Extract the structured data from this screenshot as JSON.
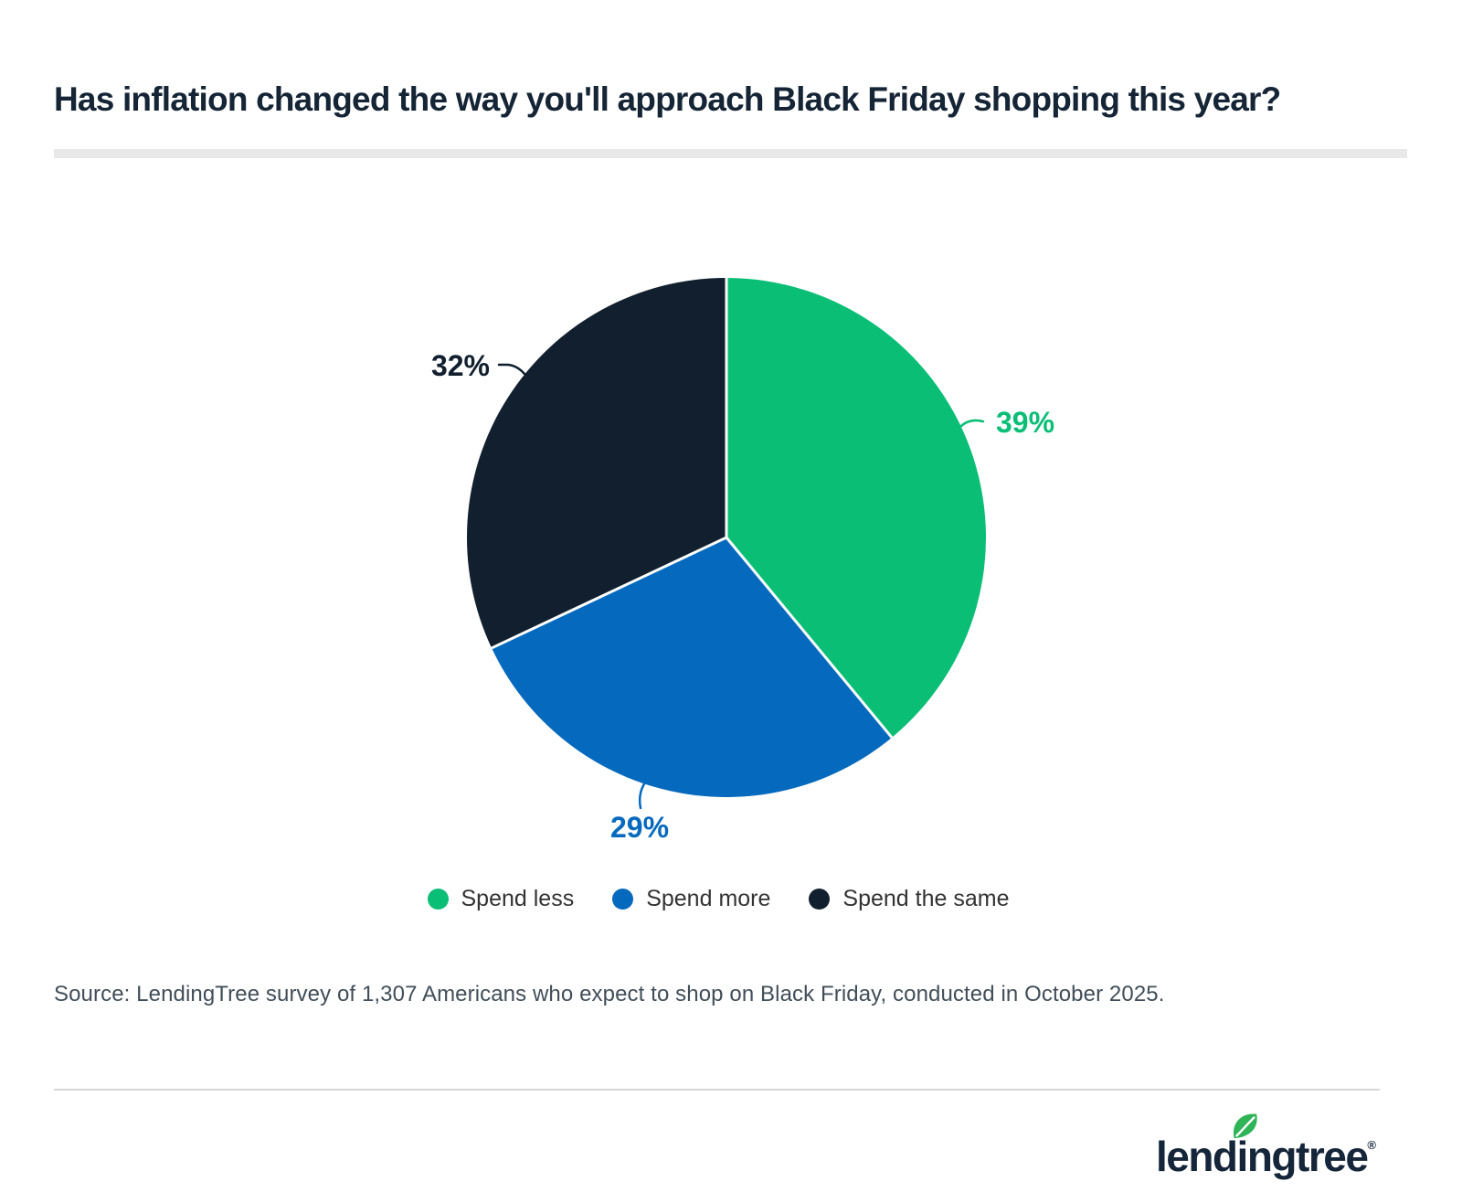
{
  "page": {
    "title": "Has inflation changed the way you'll approach Black Friday shopping this year?",
    "source_text": "Source: LendingTree survey of 1,307 Americans who expect to shop on Black Friday, conducted in October 2025."
  },
  "colors": {
    "green": "#0abe76",
    "blue": "#0569bd",
    "navy": "#111f2e",
    "title_text": "#152536",
    "legend_text": "#333333",
    "source_text": "#414e59",
    "title_rule": "#e8e8e8",
    "footer_divider": "#d8d8d8",
    "logo_navy": "#15263a",
    "leaf_green": "#2fb457",
    "slice_border": "#ffffff"
  },
  "chart_data": {
    "type": "pie",
    "title": "Has inflation changed the way you'll approach Black Friday shopping this year?",
    "start_angle_deg": 0,
    "direction": "clockwise",
    "value_suffix": "%",
    "legend_position": "bottom",
    "slices": [
      {
        "label": "Spend less",
        "value": 39,
        "color": "#0abe76"
      },
      {
        "label": "Spend more",
        "value": 29,
        "color": "#0569bd"
      },
      {
        "label": "Spend the same",
        "value": 32,
        "color": "#111f2e"
      }
    ]
  },
  "legend": {
    "items": [
      {
        "label": "Spend less",
        "color": "#0abe76"
      },
      {
        "label": "Spend more",
        "color": "#0569bd"
      },
      {
        "label": "Spend the same",
        "color": "#111f2e"
      }
    ]
  },
  "logo": {
    "part1": "lend",
    "i": "i",
    "part2": "ngtree",
    "reg": "®",
    "leaf_icon": "leaf-icon"
  }
}
